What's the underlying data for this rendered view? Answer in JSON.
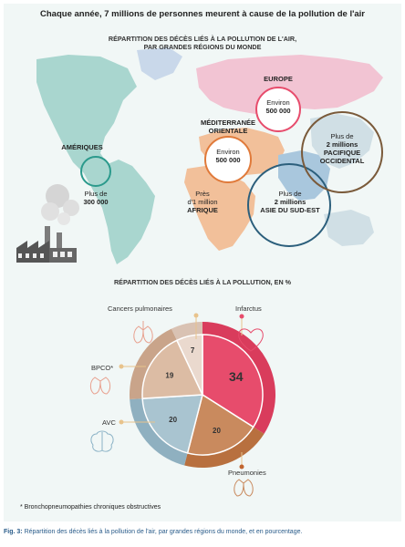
{
  "title": "Chaque année, 7 millions de personnes meurent à cause de la pollution de l'air",
  "map_section": {
    "subtitle_line1": "RÉPARTITION DES DÉCÈS LIÉS À LA POLLUTION DE L'AIR,",
    "subtitle_line2": "PAR GRANDES RÉGIONS DU MONDE",
    "regions": [
      {
        "name": "EUROPE",
        "prefix": "Environ",
        "value": "500 000"
      },
      {
        "name": "MÉDITERRANÉE ORIENTALE",
        "name_line1": "MÉDITERRANÉE",
        "name_line2": "ORIENTALE",
        "prefix": "Environ",
        "value": "500 000"
      },
      {
        "name": "AMÉRIQUES",
        "prefix": "Plus de",
        "value": "300 000"
      },
      {
        "name": "AFRIQUE",
        "prefix": "Près",
        "prefix2": "d'1 million"
      },
      {
        "name": "ASIE DU SUD-EST",
        "prefix": "Plus de",
        "value": "2 millions"
      },
      {
        "name": "PACIFIQUE OCCIDENTAL",
        "name_line1": "PACIFIQUE",
        "name_line2": "OCCIDENTAL",
        "prefix": "Plus de",
        "value": "2 millions"
      }
    ]
  },
  "pie_section": {
    "subtitle": "RÉPARTITION DES DÉCÈS LIÉS À LA POLLUTION, EN %"
  },
  "chart_data": {
    "type": "pie",
    "categories": [
      "Infarctus",
      "Pneumonies",
      "AVC",
      "BPCO*",
      "Cancers pulmonaires"
    ],
    "values": [
      34,
      20,
      20,
      19,
      7
    ],
    "colors": [
      "#e74c6c",
      "#c98a5e",
      "#a9c4d0",
      "#dcbca4",
      "#ead9ce"
    ]
  },
  "footnote": "* Bronchopneumopathies chroniques obstructives",
  "caption": {
    "label": "Fig. 3:",
    "text": " Répartition des décès liés à la pollution de l'air, par grandes régions du monde, et en pourcentage."
  }
}
